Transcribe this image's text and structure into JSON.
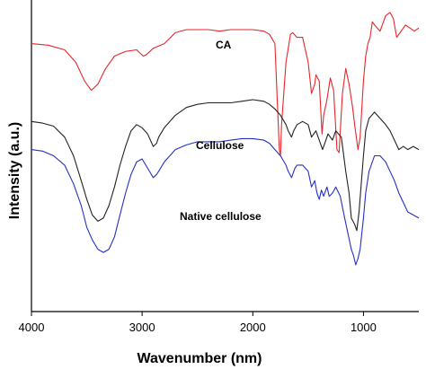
{
  "chart_data": {
    "type": "line",
    "xlabel": "Wavenumber (nm)",
    "ylabel": "Intensity (a.u.)",
    "xlim": [
      4000,
      500
    ],
    "x_reversed": true,
    "x_ticks": [
      "4000",
      "3000",
      "2000",
      "1000"
    ],
    "y_ticks": [],
    "grid": false,
    "series": [
      {
        "name": "CA",
        "color": "#e8262b",
        "points": [
          [
            4000,
            0.86
          ],
          [
            3850,
            0.855
          ],
          [
            3700,
            0.84
          ],
          [
            3600,
            0.8
          ],
          [
            3520,
            0.74
          ],
          [
            3460,
            0.71
          ],
          [
            3400,
            0.73
          ],
          [
            3330,
            0.78
          ],
          [
            3250,
            0.82
          ],
          [
            3150,
            0.835
          ],
          [
            3050,
            0.84
          ],
          [
            2990,
            0.82
          ],
          [
            2960,
            0.825
          ],
          [
            2900,
            0.845
          ],
          [
            2800,
            0.86
          ],
          [
            2700,
            0.895
          ],
          [
            2600,
            0.905
          ],
          [
            2500,
            0.905
          ],
          [
            2400,
            0.905
          ],
          [
            2300,
            0.9
          ],
          [
            2200,
            0.905
          ],
          [
            2100,
            0.905
          ],
          [
            2000,
            0.905
          ],
          [
            1900,
            0.9
          ],
          [
            1850,
            0.89
          ],
          [
            1800,
            0.86
          ],
          [
            1760,
            0.52
          ],
          [
            1750,
            0.5
          ],
          [
            1740,
            0.6
          ],
          [
            1700,
            0.8
          ],
          [
            1660,
            0.89
          ],
          [
            1640,
            0.895
          ],
          [
            1600,
            0.88
          ],
          [
            1550,
            0.88
          ],
          [
            1500,
            0.8
          ],
          [
            1470,
            0.7
          ],
          [
            1440,
            0.73
          ],
          [
            1430,
            0.76
          ],
          [
            1400,
            0.74
          ],
          [
            1375,
            0.57
          ],
          [
            1360,
            0.63
          ],
          [
            1330,
            0.68
          ],
          [
            1300,
            0.75
          ],
          [
            1270,
            0.71
          ],
          [
            1240,
            0.52
          ],
          [
            1220,
            0.51
          ],
          [
            1190,
            0.7
          ],
          [
            1160,
            0.78
          ],
          [
            1130,
            0.73
          ],
          [
            1100,
            0.66
          ],
          [
            1080,
            0.6
          ],
          [
            1050,
            0.52
          ],
          [
            1030,
            0.56
          ],
          [
            1000,
            0.74
          ],
          [
            980,
            0.82
          ],
          [
            960,
            0.86
          ],
          [
            940,
            0.88
          ],
          [
            920,
            0.93
          ],
          [
            900,
            0.92
          ],
          [
            850,
            0.9
          ],
          [
            800,
            0.95
          ],
          [
            760,
            0.96
          ],
          [
            730,
            0.94
          ],
          [
            700,
            0.88
          ],
          [
            660,
            0.9
          ],
          [
            620,
            0.92
          ],
          [
            580,
            0.91
          ],
          [
            540,
            0.9
          ],
          [
            500,
            0.91
          ]
        ]
      },
      {
        "name": "Cellulose",
        "color": "#222222",
        "points": [
          [
            4000,
            0.61
          ],
          [
            3900,
            0.605
          ],
          [
            3800,
            0.595
          ],
          [
            3700,
            0.56
          ],
          [
            3620,
            0.5
          ],
          [
            3550,
            0.42
          ],
          [
            3500,
            0.36
          ],
          [
            3450,
            0.31
          ],
          [
            3400,
            0.29
          ],
          [
            3350,
            0.3
          ],
          [
            3300,
            0.34
          ],
          [
            3250,
            0.4
          ],
          [
            3200,
            0.47
          ],
          [
            3150,
            0.53
          ],
          [
            3100,
            0.58
          ],
          [
            3050,
            0.6
          ],
          [
            3000,
            0.59
          ],
          [
            2950,
            0.57
          ],
          [
            2900,
            0.53
          ],
          [
            2870,
            0.54
          ],
          [
            2850,
            0.56
          ],
          [
            2800,
            0.59
          ],
          [
            2700,
            0.63
          ],
          [
            2600,
            0.655
          ],
          [
            2500,
            0.665
          ],
          [
            2400,
            0.67
          ],
          [
            2300,
            0.67
          ],
          [
            2200,
            0.67
          ],
          [
            2100,
            0.675
          ],
          [
            2000,
            0.68
          ],
          [
            1900,
            0.675
          ],
          [
            1850,
            0.665
          ],
          [
            1800,
            0.65
          ],
          [
            1750,
            0.63
          ],
          [
            1700,
            0.6
          ],
          [
            1680,
            0.58
          ],
          [
            1650,
            0.56
          ],
          [
            1630,
            0.58
          ],
          [
            1600,
            0.6
          ],
          [
            1550,
            0.61
          ],
          [
            1500,
            0.6
          ],
          [
            1470,
            0.56
          ],
          [
            1430,
            0.58
          ],
          [
            1400,
            0.55
          ],
          [
            1370,
            0.52
          ],
          [
            1340,
            0.55
          ],
          [
            1320,
            0.57
          ],
          [
            1300,
            0.56
          ],
          [
            1280,
            0.55
          ],
          [
            1250,
            0.58
          ],
          [
            1200,
            0.56
          ],
          [
            1160,
            0.45
          ],
          [
            1130,
            0.38
          ],
          [
            1110,
            0.3
          ],
          [
            1080,
            0.28
          ],
          [
            1060,
            0.26
          ],
          [
            1040,
            0.32
          ],
          [
            1000,
            0.5
          ],
          [
            980,
            0.58
          ],
          [
            950,
            0.62
          ],
          [
            900,
            0.64
          ],
          [
            850,
            0.62
          ],
          [
            800,
            0.6
          ],
          [
            760,
            0.58
          ],
          [
            720,
            0.55
          ],
          [
            680,
            0.52
          ],
          [
            640,
            0.53
          ],
          [
            600,
            0.52
          ],
          [
            550,
            0.53
          ],
          [
            500,
            0.52
          ]
        ]
      },
      {
        "name": "Native cellulose",
        "color": "#2330c8",
        "points": [
          [
            4000,
            0.52
          ],
          [
            3900,
            0.515
          ],
          [
            3800,
            0.5
          ],
          [
            3700,
            0.47
          ],
          [
            3620,
            0.41
          ],
          [
            3550,
            0.34
          ],
          [
            3500,
            0.27
          ],
          [
            3450,
            0.23
          ],
          [
            3400,
            0.2
          ],
          [
            3350,
            0.19
          ],
          [
            3300,
            0.2
          ],
          [
            3250,
            0.24
          ],
          [
            3200,
            0.31
          ],
          [
            3150,
            0.38
          ],
          [
            3100,
            0.44
          ],
          [
            3050,
            0.48
          ],
          [
            3000,
            0.49
          ],
          [
            2950,
            0.46
          ],
          [
            2900,
            0.43
          ],
          [
            2870,
            0.44
          ],
          [
            2850,
            0.45
          ],
          [
            2800,
            0.48
          ],
          [
            2700,
            0.52
          ],
          [
            2600,
            0.535
          ],
          [
            2500,
            0.545
          ],
          [
            2400,
            0.545
          ],
          [
            2300,
            0.545
          ],
          [
            2200,
            0.55
          ],
          [
            2100,
            0.555
          ],
          [
            2000,
            0.555
          ],
          [
            1900,
            0.55
          ],
          [
            1850,
            0.54
          ],
          [
            1800,
            0.52
          ],
          [
            1750,
            0.5
          ],
          [
            1700,
            0.47
          ],
          [
            1680,
            0.45
          ],
          [
            1650,
            0.43
          ],
          [
            1620,
            0.46
          ],
          [
            1600,
            0.47
          ],
          [
            1550,
            0.47
          ],
          [
            1500,
            0.45
          ],
          [
            1470,
            0.4
          ],
          [
            1440,
            0.42
          ],
          [
            1420,
            0.38
          ],
          [
            1400,
            0.36
          ],
          [
            1380,
            0.39
          ],
          [
            1360,
            0.37
          ],
          [
            1330,
            0.4
          ],
          [
            1310,
            0.37
          ],
          [
            1280,
            0.38
          ],
          [
            1250,
            0.4
          ],
          [
            1210,
            0.37
          ],
          [
            1170,
            0.3
          ],
          [
            1140,
            0.25
          ],
          [
            1110,
            0.2
          ],
          [
            1090,
            0.18
          ],
          [
            1070,
            0.15
          ],
          [
            1050,
            0.17
          ],
          [
            1030,
            0.2
          ],
          [
            1000,
            0.3
          ],
          [
            980,
            0.38
          ],
          [
            950,
            0.45
          ],
          [
            900,
            0.5
          ],
          [
            850,
            0.5
          ],
          [
            800,
            0.48
          ],
          [
            760,
            0.45
          ],
          [
            720,
            0.42
          ],
          [
            680,
            0.38
          ],
          [
            640,
            0.35
          ],
          [
            600,
            0.32
          ],
          [
            550,
            0.31
          ],
          [
            500,
            0.3
          ]
        ]
      }
    ]
  }
}
